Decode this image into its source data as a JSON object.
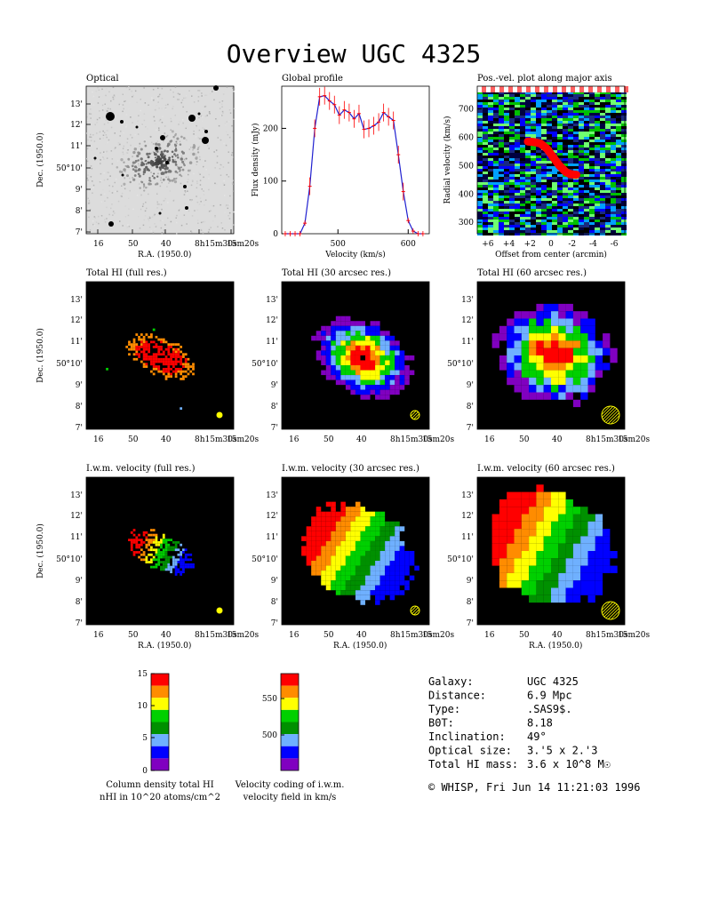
{
  "page": {
    "title": "Overview UGC 4325",
    "footer": "© WHISP, Fri Jun 14 11:21:03 1996"
  },
  "axes": {
    "ra_label": "R.A. (1950.0)",
    "dec_label": "Dec. (1950.0)",
    "ra_ticks": [
      "16",
      "50",
      "40",
      "8h15m30s",
      "15m20s"
    ],
    "dec_ticks": [
      "13'",
      "12'",
      "11'",
      "50°10'",
      "9'",
      "8'",
      "7'"
    ]
  },
  "panels": {
    "optical": {
      "title": "Optical"
    },
    "profile": {
      "title": "Global profile"
    },
    "pv": {
      "title": "Pos.-vel. plot along major axis"
    },
    "hi_full": {
      "title": "Total HI (full res.)"
    },
    "hi_30": {
      "title": "Total HI (30 arcsec res.)"
    },
    "hi_60": {
      "title": "Total HI (60 arcsec res.)"
    },
    "vel_full": {
      "title": "I.w.m. velocity (full res.)"
    },
    "vel_30": {
      "title": "I.w.m. velocity (30 arcsec res.)"
    },
    "vel_60": {
      "title": "I.w.m. velocity (60 arcsec res.)"
    }
  },
  "colors": {
    "red": "#ff0000",
    "orange": "#ff8c00",
    "yellow": "#ffff00",
    "green": "#00d000",
    "darkgreen": "#009000",
    "lightblue": "#6fb0ff",
    "blue": "#0000ff",
    "purple": "#8000c0",
    "black": "#000000",
    "profile_line": "#2020d0",
    "profile_points": "#ff0000"
  },
  "colorbars": {
    "density": {
      "label_line1": "Column density total HI",
      "label_line2": "nHI in 10^20 atoms/cm^2",
      "ticks": [
        "15",
        "10",
        "5",
        "0"
      ]
    },
    "velocity": {
      "label_line1": "Velocity coding of i.w.m.",
      "label_line2": "velocity field in km/s",
      "ticks": [
        "550",
        "500"
      ]
    }
  },
  "info": {
    "rows": [
      {
        "key": "Galaxy:",
        "value": "UGC 4325"
      },
      {
        "key": "Distance:",
        "value": "6.9 Mpc"
      },
      {
        "key": "Type:",
        "value": ".SAS9$."
      },
      {
        "key": "B0T:",
        "value": "8.18"
      },
      {
        "key": "Inclination:",
        "value": "49°"
      },
      {
        "key": "Optical size:",
        "value": "3.'5 x 2.'3"
      },
      {
        "key": "Total HI mass:",
        "value": "3.6 x 10^8 M☉"
      }
    ]
  },
  "chart_data": [
    {
      "type": "line",
      "title": "Global profile",
      "xlabel": "Velocity (km/s)",
      "ylabel": "Flux density (mJy)",
      "xlim": [
        420,
        630
      ],
      "ylim": [
        0,
        280
      ],
      "x_ticks": [
        "500",
        "600"
      ],
      "y_ticks": [
        "0",
        "100",
        "200"
      ],
      "x": [
        425,
        432,
        439,
        446,
        453,
        460,
        467,
        474,
        481,
        488,
        495,
        502,
        509,
        516,
        523,
        530,
        537,
        544,
        551,
        558,
        565,
        572,
        579,
        586,
        593,
        600,
        607,
        614,
        621
      ],
      "values": [
        0,
        0,
        0,
        0,
        20,
        90,
        200,
        260,
        262,
        252,
        245,
        225,
        235,
        230,
        218,
        228,
        198,
        200,
        205,
        212,
        230,
        222,
        215,
        150,
        80,
        25,
        5,
        0,
        0
      ]
    },
    {
      "type": "heatmap",
      "title": "Pos.-vel. plot along major axis",
      "xlabel": "Offset from center (arcmin)",
      "ylabel": "Radial velocity (km/s)",
      "xlim": [
        7,
        -7
      ],
      "ylim": [
        260,
        780
      ],
      "x_ticks": [
        "+6",
        "+4",
        "+2",
        "0",
        "-2",
        "-4",
        "-6"
      ],
      "y_ticks": [
        "300",
        "400",
        "500",
        "600",
        "700"
      ]
    }
  ]
}
